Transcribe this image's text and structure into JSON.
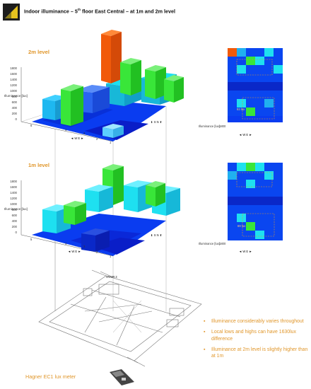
{
  "slide": {
    "title_main": "Indoor illuminance – 5",
    "title_sup": "th",
    "title_rest": " floor East Central – at 1m and 2m level"
  },
  "colors": {
    "accent": "#e0962a",
    "bar_green": "#39e639",
    "bar_cyan": "#1ee0f0",
    "bar_blue": "#0a46f0",
    "bar_dark": "#0a1ec8",
    "bar_orange": "#f15a0a"
  },
  "chart_2m": {
    "level_label": "2m level",
    "ylabel": "Illuminance [lux]",
    "yticks": [
      "1800",
      "1600",
      "1400",
      "1200",
      "1000",
      "800",
      "600",
      "400",
      "200",
      "0"
    ],
    "x_ticks": [
      "5",
      "4",
      "3",
      "2",
      "1"
    ],
    "y_ticks": [
      "1",
      "2",
      "3",
      "4",
      "5",
      "6",
      "7"
    ],
    "dir_we": "W   E",
    "dir_sn": "S  N",
    "heatmap_label": "Illuminance [lux]",
    "heatmap_max": "1800",
    "heatmap_area_label": "93 lux"
  },
  "chart_1m": {
    "level_label": "1m level",
    "ylabel": "Illuminance [lux]",
    "yticks": [
      "1800",
      "1600",
      "1400",
      "1200",
      "1000",
      "800",
      "600",
      "400",
      "200",
      "0"
    ],
    "x_ticks": [
      "5",
      "4",
      "3",
      "2",
      "1"
    ],
    "y_ticks": [
      "1",
      "2",
      "3",
      "4",
      "5",
      "6",
      "7"
    ],
    "dir_we": "W   E",
    "dir_sn": "S  N",
    "heatmap_label": "Illuminance [lux]",
    "heatmap_max": "1800",
    "heatmap_area_label": "69 lux"
  },
  "bullets": [
    "Illuminance considerably varies throughout",
    "Local lows and highs can have 1630lux difference",
    "Illuminance at 2m level is slightly higher than at 1m"
  ],
  "floorplan": {
    "stair_label": "STAIR 2"
  },
  "meter_label": "Hagner EC1 lux meter"
}
